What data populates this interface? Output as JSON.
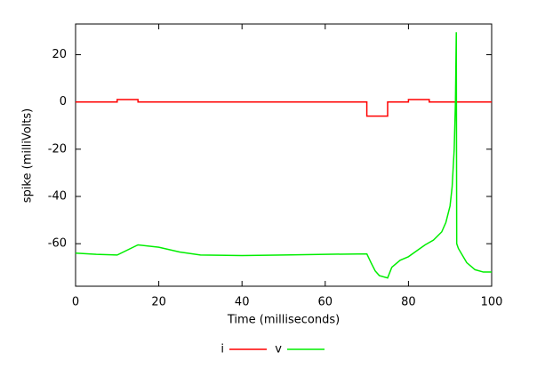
{
  "chart_data": {
    "type": "line",
    "xlabel": "Time (milliseconds)",
    "ylabel": "spike (milliVolts)",
    "xlim": [
      0,
      100
    ],
    "xticks": [
      0,
      20,
      40,
      60,
      80,
      100
    ],
    "ylim": [
      -78,
      33
    ],
    "yticks": [
      -60,
      -40,
      -20,
      0,
      20
    ],
    "legend": "bottom",
    "series": [
      {
        "name": "i",
        "color": "#ff0000",
        "x": [
          0,
          10,
          10,
          15,
          15,
          70,
          70,
          75,
          75,
          80,
          80,
          85,
          85,
          100
        ],
        "values": [
          0,
          0,
          1,
          1,
          0,
          0,
          -6,
          -6,
          0,
          0,
          1,
          1,
          0,
          0
        ]
      },
      {
        "name": "v",
        "color": "#00ee00",
        "x": [
          0,
          5,
          10,
          15,
          20,
          25,
          30,
          40,
          50,
          60,
          70,
          71,
          72,
          73,
          75,
          76,
          78,
          80,
          82,
          84,
          86,
          88,
          89,
          90,
          90.5,
          91,
          91.3,
          91.5,
          91.6,
          92,
          94,
          96,
          98,
          100
        ],
        "values": [
          -64,
          -64.5,
          -64.8,
          -60.5,
          -61.5,
          -63.5,
          -64.8,
          -65,
          -64.8,
          -64.5,
          -64.3,
          -68,
          -71.5,
          -73.5,
          -74.5,
          -70,
          -67,
          -65.5,
          -63,
          -60.5,
          -58.5,
          -55,
          -51,
          -44,
          -36,
          -20,
          0,
          29.5,
          -60,
          -62,
          -68,
          -71,
          -72,
          -72
        ]
      }
    ]
  }
}
